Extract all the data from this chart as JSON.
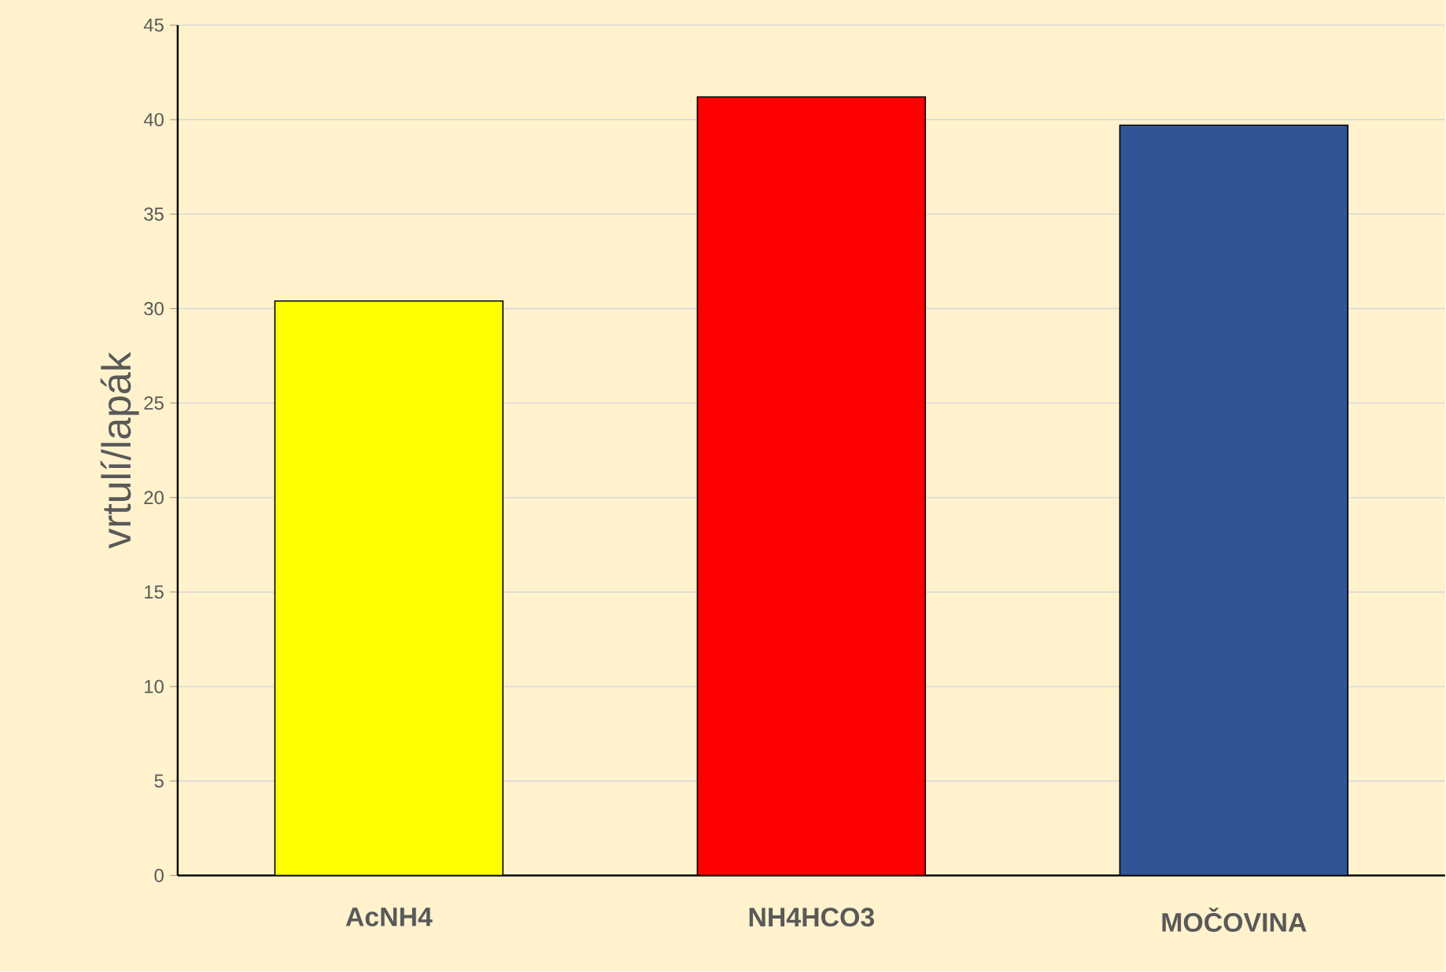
{
  "chart_data": {
    "type": "bar",
    "ylabel": "vrtulí/lapák",
    "categories": [
      "AcNH4",
      "NH4HCO3",
      "MOČOVINA"
    ],
    "values": [
      30.4,
      41.2,
      39.7
    ],
    "colors": [
      "#ffff00",
      "#ff0000",
      "#2f5597"
    ],
    "ylim": [
      0,
      45
    ],
    "yticks": [
      0,
      5,
      10,
      15,
      20,
      25,
      30,
      35,
      40,
      45
    ],
    "grid": "y"
  }
}
